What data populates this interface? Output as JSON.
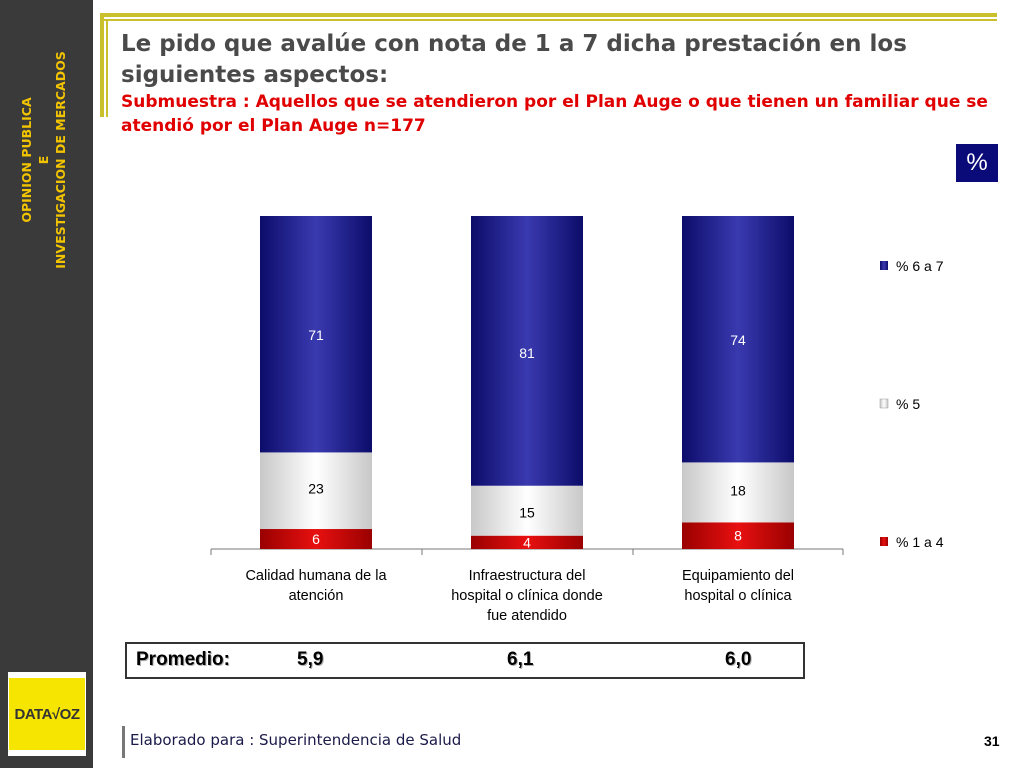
{
  "sidebar": {
    "line1": "OPINION PUBLICA",
    "line2": "E",
    "line3": "INVESTIGACION DE MERCADOS"
  },
  "logo": {
    "text": "DATA√OZ"
  },
  "header": {
    "title": "Le pido que avalúe con nota de 1 a 7 dicha prestación en los siguientes aspectos:",
    "subtitle": "Submuestra : Aquellos que se atendieron por el Plan Auge o que tienen un familiar que se atendió por el Plan Auge n=177"
  },
  "percent_badge": "%",
  "chart_data": {
    "type": "bar",
    "stacked": true,
    "categories": [
      "Calidad humana de la atención",
      "Infraestructura del hospital o clínica donde fue atendido",
      "Equipamiento del hospital o clínica"
    ],
    "category_lines": [
      [
        "Calidad humana de la",
        "atención"
      ],
      [
        "Infraestructura del",
        "hospital o clínica donde",
        "fue atendido"
      ],
      [
        "Equipamiento del",
        "hospital o clínica"
      ]
    ],
    "series": [
      {
        "name": "% 1 a 4",
        "values": [
          6,
          4,
          8
        ],
        "color": "#cc0000"
      },
      {
        "name": "% 5",
        "values": [
          23,
          15,
          18
        ],
        "color": "#f0f0f0"
      },
      {
        "name": "% 6 a 7",
        "values": [
          71,
          81,
          74
        ],
        "color": "#1e1e8a"
      }
    ],
    "legend_order": [
      "% 6 a 7",
      "% 5",
      "% 1 a 4"
    ],
    "legend_position": "right",
    "ylim": [
      0,
      100
    ],
    "grid": false
  },
  "promedio": {
    "label": "Promedio:",
    "values": [
      "5,9",
      "6,1",
      "6,0"
    ]
  },
  "footer": {
    "text": "Elaborado para : Superintendencia de Salud",
    "page": "31"
  }
}
